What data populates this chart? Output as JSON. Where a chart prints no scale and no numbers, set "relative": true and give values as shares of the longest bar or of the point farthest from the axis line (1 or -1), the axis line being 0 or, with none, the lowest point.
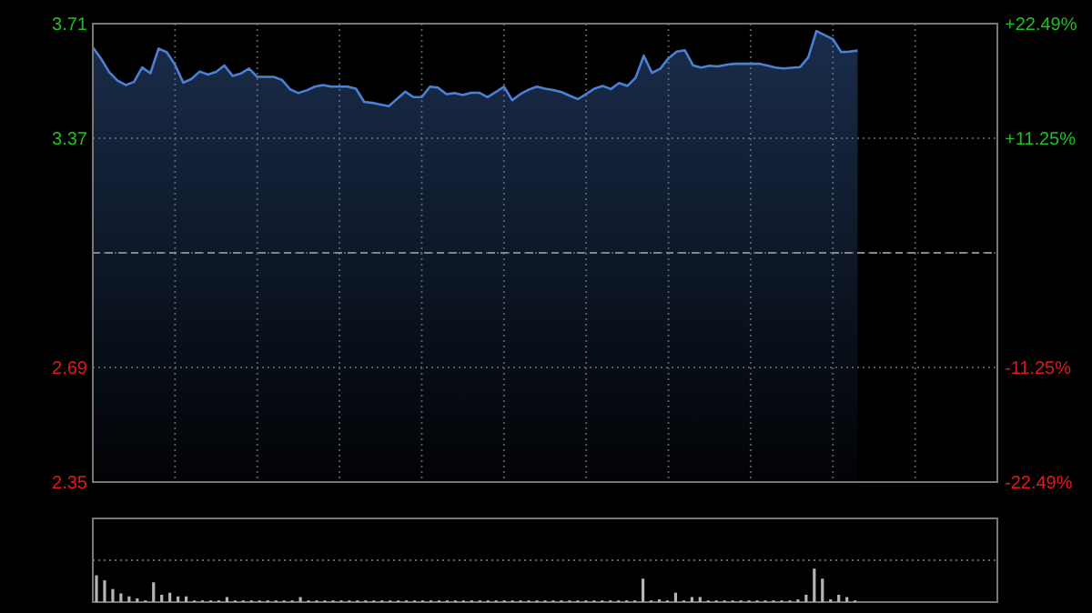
{
  "chart_data": [
    {
      "type": "area",
      "categories": [
        null,
        null,
        null,
        null,
        null,
        null,
        null,
        null,
        null,
        null,
        null,
        null,
        null,
        null,
        null,
        null,
        null,
        null,
        null,
        null,
        null,
        null,
        null,
        null,
        null,
        null,
        null,
        null,
        null,
        null,
        null,
        null,
        null,
        null,
        null,
        null,
        null,
        null,
        null,
        null,
        null,
        null,
        null,
        null,
        null,
        null,
        null,
        null,
        null,
        null,
        null,
        null,
        null,
        null,
        null,
        null,
        null,
        null,
        null,
        null,
        null,
        null,
        null,
        null,
        null,
        null,
        null,
        null,
        null,
        null,
        null,
        null,
        null,
        null,
        null,
        null,
        null,
        null,
        null,
        null,
        null,
        null,
        null,
        null,
        null,
        null,
        null,
        null,
        null,
        null,
        null,
        null,
        null,
        null,
        null,
        null,
        null,
        null,
        null,
        null,
        null,
        null,
        null,
        null,
        null,
        null,
        null,
        null,
        null,
        null,
        null
      ],
      "ylim": [
        2.35,
        3.71
      ],
      "yticks": [
        2.35,
        2.69,
        {
          "value": 3.03,
          "label": null
        },
        3.37,
        3.71
      ],
      "y2lim": [
        -22.49,
        22.49
      ],
      "y2ticks": [
        {
          "value": -22.49,
          "label": "-22.49%"
        },
        {
          "value": -11.25,
          "label": "-11.25%"
        },
        {
          "value": 11.25,
          "label": "+11.25%"
        },
        {
          "value": 22.49,
          "label": "+22.49%"
        }
      ],
      "grid": true,
      "ref_lines": [
        {
          "axis": "y",
          "value": 3.03,
          "line_style": "dashed"
        }
      ],
      "series": [
        {
          "color": "#4a80d6",
          "values": [
            3.64,
            3.606,
            3.566,
            3.541,
            3.528,
            3.537,
            3.58,
            3.563,
            3.636,
            3.625,
            3.588,
            3.535,
            3.546,
            3.568,
            3.559,
            3.567,
            3.586,
            3.555,
            3.562,
            3.577,
            3.552,
            3.552,
            3.552,
            3.543,
            3.515,
            3.504,
            3.512,
            3.523,
            3.528,
            3.523,
            3.523,
            3.523,
            3.517,
            3.478,
            3.475,
            3.47,
            3.465,
            3.487,
            3.508,
            3.492,
            3.492,
            3.523,
            3.52,
            3.501,
            3.504,
            3.498,
            3.505,
            3.505,
            3.492,
            3.507,
            3.523,
            3.483,
            3.501,
            3.514,
            3.523,
            3.517,
            3.513,
            3.507,
            3.496,
            3.486,
            3.501,
            3.517,
            3.525,
            3.516,
            3.534,
            3.525,
            3.549,
            3.615,
            3.564,
            3.576,
            3.607,
            3.627,
            3.631,
            3.586,
            3.58,
            3.585,
            3.583,
            3.588,
            3.591,
            3.591,
            3.591,
            3.591,
            3.586,
            3.58,
            3.577,
            3.579,
            3.581,
            3.61,
            3.688,
            3.676,
            3.664,
            3.626,
            3.627,
            3.63,
            null,
            null,
            null,
            null,
            null,
            null,
            null,
            null,
            null,
            null,
            null,
            null,
            null,
            null,
            null,
            null,
            null
          ]
        }
      ]
    },
    {
      "type": "bar",
      "relative": true,
      "color": "#b4b4b4",
      "grid": true,
      "categories": [
        null,
        null,
        null,
        null,
        null,
        null,
        null,
        null,
        null,
        null,
        null,
        null,
        null,
        null,
        null,
        null,
        null,
        null,
        null,
        null,
        null,
        null,
        null,
        null,
        null,
        null,
        null,
        null,
        null,
        null,
        null,
        null,
        null,
        null,
        null,
        null,
        null,
        null,
        null,
        null,
        null,
        null,
        null,
        null,
        null,
        null,
        null,
        null,
        null,
        null,
        null,
        null,
        null,
        null,
        null,
        null,
        null,
        null,
        null,
        null,
        null,
        null,
        null,
        null,
        null,
        null,
        null,
        null,
        null,
        null,
        null,
        null,
        null,
        null,
        null,
        null,
        null,
        null,
        null,
        null,
        null,
        null,
        null,
        null,
        null,
        null,
        null,
        null,
        null,
        null,
        null,
        null,
        null,
        null,
        null,
        null,
        null,
        null,
        null,
        null,
        null,
        null,
        null,
        null,
        null,
        null,
        null,
        null,
        null,
        null,
        null
      ],
      "values": [
        0.8,
        0.65,
        0.39,
        0.26,
        0.17,
        0.11,
        0.05,
        0.59,
        0.22,
        0.28,
        0.17,
        0.17,
        0.05,
        0.05,
        0.05,
        0.05,
        0.15,
        0.05,
        0.05,
        0.05,
        0.05,
        0.05,
        0.05,
        0.05,
        0.05,
        0.15,
        0.05,
        0.05,
        0.05,
        0.05,
        0.05,
        0.05,
        0.05,
        0.05,
        0.05,
        0.05,
        0.05,
        0.05,
        0.05,
        0.05,
        0.05,
        0.05,
        0.05,
        0.05,
        0.05,
        0.05,
        0.05,
        0.05,
        0.05,
        0.05,
        0.05,
        0.05,
        0.05,
        0.05,
        0.05,
        0.05,
        0.05,
        0.05,
        0.05,
        0.05,
        0.05,
        0.05,
        0.05,
        0.05,
        0.05,
        0.05,
        0.05,
        0.7,
        0.05,
        0.08,
        0.05,
        0.28,
        0.05,
        0.15,
        0.15,
        0.05,
        0.05,
        0.05,
        0.05,
        0.05,
        0.05,
        0.05,
        0.05,
        0.05,
        0.05,
        0.05,
        0.08,
        0.22,
        1,
        0.7,
        0.08,
        0.22,
        0.15,
        0.05,
        null,
        null,
        null,
        null,
        null,
        null,
        null,
        null,
        null,
        null,
        null,
        null,
        null,
        null,
        null,
        null,
        null
      ]
    }
  ]
}
